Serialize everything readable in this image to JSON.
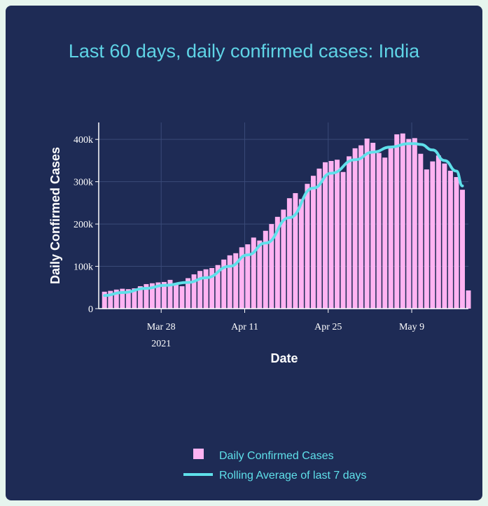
{
  "chart_data": {
    "type": "bar",
    "title": "Last 60 days, daily confirmed cases: India",
    "xlabel": "Date",
    "ylabel": "Daily Confirmed Cases",
    "ylim": [
      0,
      440000
    ],
    "yticks": [
      0,
      100000,
      200000,
      300000,
      400000
    ],
    "ytick_labels": [
      "0",
      "100k",
      "200k",
      "300k",
      "400k"
    ],
    "x_start": "2021-03-18",
    "x_end": "2021-05-17",
    "xticks": [
      {
        "date": "2021-03-28",
        "label": "Mar 28",
        "sublabel": "2021"
      },
      {
        "date": "2021-04-11",
        "label": "Apr 11",
        "sublabel": ""
      },
      {
        "date": "2021-04-25",
        "label": "Apr 25",
        "sublabel": ""
      },
      {
        "date": "2021-05-09",
        "label": "May 9",
        "sublabel": ""
      }
    ],
    "grid": true,
    "legend_position": "bottom-center",
    "colors": {
      "bars": "#ffb3f2",
      "line": "#5fe0ea",
      "grid": "#3a4a78",
      "text": "#ffffff",
      "title": "#5fd4e6"
    },
    "series": [
      {
        "name": "Daily Confirmed Cases",
        "kind": "bar",
        "x": [
          "2021-03-18",
          "2021-03-19",
          "2021-03-20",
          "2021-03-21",
          "2021-03-22",
          "2021-03-23",
          "2021-03-24",
          "2021-03-25",
          "2021-03-26",
          "2021-03-27",
          "2021-03-28",
          "2021-03-29",
          "2021-03-30",
          "2021-03-31",
          "2021-04-01",
          "2021-04-02",
          "2021-04-03",
          "2021-04-04",
          "2021-04-05",
          "2021-04-06",
          "2021-04-07",
          "2021-04-08",
          "2021-04-09",
          "2021-04-10",
          "2021-04-11",
          "2021-04-12",
          "2021-04-13",
          "2021-04-14",
          "2021-04-15",
          "2021-04-16",
          "2021-04-17",
          "2021-04-18",
          "2021-04-19",
          "2021-04-20",
          "2021-04-21",
          "2021-04-22",
          "2021-04-23",
          "2021-04-24",
          "2021-04-25",
          "2021-04-26",
          "2021-04-27",
          "2021-04-28",
          "2021-04-29",
          "2021-04-30",
          "2021-05-01",
          "2021-05-02",
          "2021-05-03",
          "2021-05-04",
          "2021-05-05",
          "2021-05-06",
          "2021-05-07",
          "2021-05-08",
          "2021-05-09",
          "2021-05-10",
          "2021-05-11",
          "2021-05-12",
          "2021-05-13",
          "2021-05-14",
          "2021-05-15",
          "2021-05-16",
          "2021-05-17"
        ],
        "values": [
          40000,
          42000,
          45000,
          47000,
          46000,
          48000,
          53000,
          58000,
          60000,
          62000,
          63000,
          68000,
          56000,
          53000,
          72000,
          81000,
          89000,
          93000,
          96000,
          103000,
          116000,
          126000,
          131000,
          145000,
          152000,
          168000,
          161000,
          184000,
          200000,
          217000,
          234000,
          261000,
          273000,
          259000,
          295000,
          314000,
          331000,
          346000,
          349000,
          352000,
          323000,
          360000,
          379000,
          386000,
          402000,
          392000,
          368000,
          357000,
          382000,
          412000,
          414000,
          401000,
          403000,
          366000,
          329000,
          348000,
          362000,
          343000,
          326000,
          311000,
          281000
        ]
      },
      {
        "name": "Rolling Average of last 7 days",
        "kind": "line",
        "x": [
          "2021-03-18",
          "2021-03-21",
          "2021-03-25",
          "2021-03-28",
          "2021-04-01",
          "2021-04-04",
          "2021-04-08",
          "2021-04-11",
          "2021-04-14",
          "2021-04-18",
          "2021-04-22",
          "2021-04-25",
          "2021-04-29",
          "2021-05-02",
          "2021-05-05",
          "2021-05-08",
          "2021-05-09",
          "2021-05-10",
          "2021-05-12",
          "2021-05-14",
          "2021-05-16",
          "2021-05-17"
        ],
        "values": [
          31000,
          38000,
          48000,
          55000,
          62000,
          73000,
          100000,
          127000,
          155000,
          215000,
          285000,
          320000,
          352000,
          370000,
          382000,
          390000,
          390000,
          388000,
          375000,
          350000,
          325000,
          290000
        ]
      }
    ],
    "final_partial_bar": {
      "date": "2021-05-18",
      "value": 43000
    }
  }
}
